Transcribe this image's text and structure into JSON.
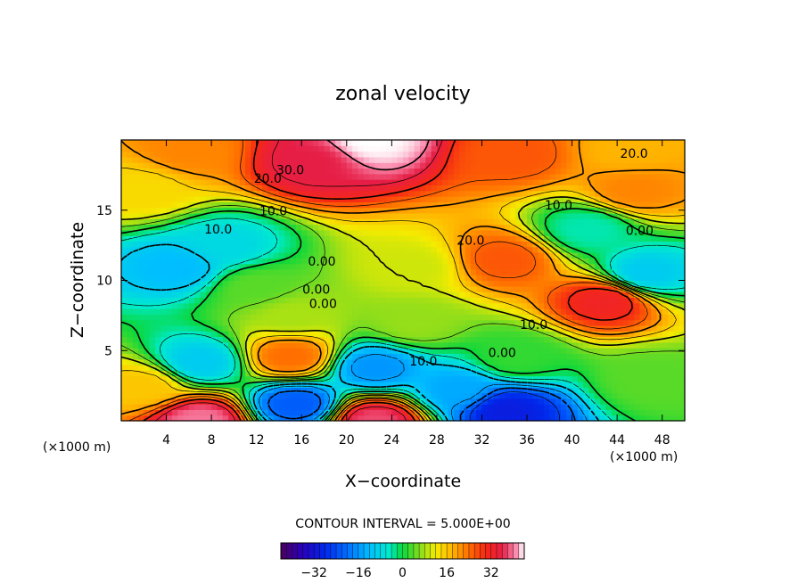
{
  "chart_data": {
    "type": "heatmap",
    "title": "zonal velocity",
    "xlabel": "X−coordinate",
    "ylabel": "Z−coordinate",
    "x_unit": "(×1000 m)",
    "y_unit": "(×1000 m)",
    "xlim": [
      0,
      50
    ],
    "ylim": [
      0,
      20
    ],
    "x_ticks": [
      "4",
      "8",
      "12",
      "16",
      "20",
      "24",
      "28",
      "32",
      "36",
      "40",
      "44",
      "48"
    ],
    "x_tick_values": [
      4,
      8,
      12,
      16,
      20,
      24,
      28,
      32,
      36,
      40,
      44,
      48
    ],
    "y_ticks": [
      "5",
      "10",
      "15"
    ],
    "y_tick_values": [
      5,
      10,
      15
    ],
    "contour_interval_label": "CONTOUR INTERVAL = 5.000E+00",
    "contour_interval": 5,
    "colorbar": {
      "min": -44,
      "max": 44,
      "ticks": [
        "−32",
        "−16",
        "0",
        "16",
        "32"
      ],
      "tick_values": [
        -32,
        -16,
        0,
        16,
        32
      ]
    },
    "contour_labels": [
      {
        "text": "30.0",
        "x": 15,
        "y": 17.8
      },
      {
        "text": "20.0",
        "x": 13,
        "y": 17.2
      },
      {
        "text": "20.0",
        "x": 45.5,
        "y": 19.0
      },
      {
        "text": "10.0",
        "x": 13.5,
        "y": 14.9
      },
      {
        "text": "10.0",
        "x": 8.6,
        "y": 13.6
      },
      {
        "text": "10.0",
        "x": 38.8,
        "y": 15.3
      },
      {
        "text": "20.0",
        "x": 31.0,
        "y": 12.8
      },
      {
        "text": "0.00",
        "x": 46.0,
        "y": 13.5
      },
      {
        "text": "0.00",
        "x": 17.8,
        "y": 11.3
      },
      {
        "text": "0.00",
        "x": 17.3,
        "y": 9.3
      },
      {
        "text": "0.00",
        "x": 17.9,
        "y": 8.3
      },
      {
        "text": "10.0",
        "x": 36.6,
        "y": 6.8
      },
      {
        "text": "0.00",
        "x": 33.8,
        "y": 4.8
      },
      {
        "text": "10.0",
        "x": 26.8,
        "y": 4.2
      }
    ],
    "field_features": [
      {
        "x": 22,
        "y": 20,
        "value": 44
      },
      {
        "x": 17,
        "y": 18.5,
        "value": 36
      },
      {
        "x": 6,
        "y": 19.2,
        "value": 22
      },
      {
        "x": 35,
        "y": 19.0,
        "value": 26
      },
      {
        "x": 45,
        "y": 19.3,
        "value": 18
      },
      {
        "x": 45.5,
        "y": 16.4,
        "value": 22
      },
      {
        "x": 2,
        "y": 16.5,
        "value": 14
      },
      {
        "x": 34,
        "y": 11.5,
        "value": 26
      },
      {
        "x": 43,
        "y": 8.6,
        "value": 32
      },
      {
        "x": 26,
        "y": 11,
        "value": 10
      },
      {
        "x": 26,
        "y": 7,
        "value": 7
      },
      {
        "x": 5,
        "y": 11,
        "value": -12
      },
      {
        "x": 9,
        "y": 12.5,
        "value": -8
      },
      {
        "x": 15,
        "y": 4.6,
        "value": 24
      },
      {
        "x": 15,
        "y": 7.5,
        "value": 8
      },
      {
        "x": 7,
        "y": 4.2,
        "value": -10
      },
      {
        "x": 22.5,
        "y": 3.8,
        "value": -16
      },
      {
        "x": 2,
        "y": 2.5,
        "value": 16
      },
      {
        "x": 7,
        "y": 0,
        "value": 40
      },
      {
        "x": 22.5,
        "y": 0,
        "value": 38
      },
      {
        "x": 15.5,
        "y": 1.2,
        "value": -22
      },
      {
        "x": 34,
        "y": 0.8,
        "value": -30
      },
      {
        "x": 30,
        "y": 2.2,
        "value": -14
      },
      {
        "x": 46.5,
        "y": 10.5,
        "value": -10
      },
      {
        "x": 47,
        "y": 3,
        "value": 4
      },
      {
        "x": 41.5,
        "y": 13.7,
        "value": -4
      },
      {
        "x": 35,
        "y": 4.5,
        "value": 2
      },
      {
        "x": 12,
        "y": 9.5,
        "value": 4
      }
    ]
  }
}
